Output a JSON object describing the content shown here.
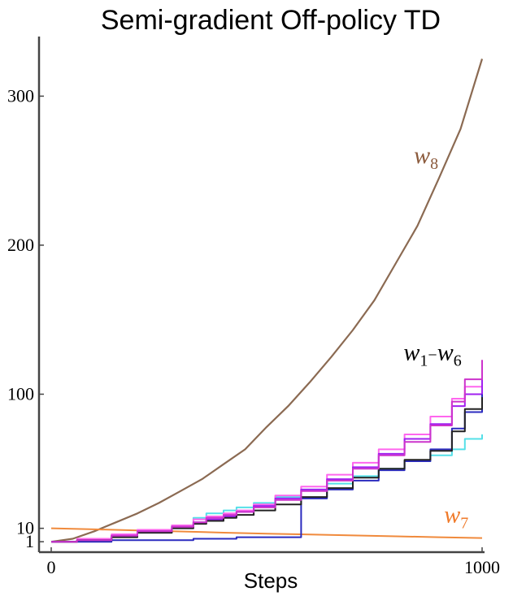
{
  "chart_data": {
    "type": "line",
    "title": "Semi-gradient Off-policy TD",
    "xlabel": "Steps",
    "ylabel": "",
    "xlim": [
      0,
      1000
    ],
    "ylim": [
      -6,
      340
    ],
    "xticks": [
      {
        "value": 0,
        "label": "0"
      },
      {
        "value": 1000,
        "label": "1000"
      }
    ],
    "yticks": [
      {
        "value": 1,
        "label": "1"
      },
      {
        "value": 10,
        "label": "10"
      },
      {
        "value": 100,
        "label": "100"
      },
      {
        "value": 200,
        "label": "200"
      },
      {
        "value": 300,
        "label": "300"
      }
    ],
    "series": [
      {
        "key": "w8",
        "color": "#8b6a52",
        "stroke": 2.2,
        "x": [
          0,
          50,
          100,
          150,
          200,
          250,
          300,
          350,
          400,
          450,
          500,
          550,
          600,
          650,
          700,
          750,
          800,
          850,
          900,
          950,
          1000
        ],
        "y": [
          1,
          3,
          8,
          14,
          20,
          27,
          35,
          43,
          53,
          63,
          78,
          92,
          108,
          125,
          143,
          163,
          188,
          213,
          245,
          278,
          325
        ]
      },
      {
        "key": "w7",
        "color": "#f08a3c",
        "stroke": 2,
        "x": [
          0,
          100,
          200,
          300,
          400,
          500,
          600,
          700,
          800,
          900,
          1000
        ],
        "y": [
          10,
          9.3,
          8.6,
          7.9,
          7.1,
          6.4,
          5.8,
          5.2,
          4.6,
          4.0,
          3.5
        ]
      },
      {
        "key": "w1",
        "color": "#55e0e8",
        "stroke": 2,
        "x": [
          0,
          60,
          140,
          200,
          280,
          330,
          360,
          400,
          430,
          470,
          520,
          580,
          640,
          700,
          760,
          820,
          880,
          930,
          960,
          1000
        ],
        "y": [
          1,
          2,
          5,
          9,
          12,
          17,
          20,
          22,
          24,
          27,
          31,
          36,
          40,
          45,
          50,
          55,
          59,
          63,
          70,
          73
        ]
      },
      {
        "key": "w2",
        "color": "#ff66ee",
        "stroke": 2,
        "x": [
          0,
          60,
          140,
          200,
          280,
          330,
          360,
          400,
          430,
          470,
          520,
          580,
          640,
          700,
          760,
          820,
          880,
          930,
          960,
          1000
        ],
        "y": [
          1,
          3,
          6,
          9,
          12,
          16,
          18,
          20,
          22,
          26,
          32,
          38,
          46,
          54,
          63,
          73,
          85,
          97,
          105,
          118
        ]
      },
      {
        "key": "w3",
        "color": "#a020f0",
        "stroke": 2,
        "x": [
          0,
          60,
          140,
          200,
          280,
          330,
          360,
          400,
          430,
          470,
          520,
          580,
          640,
          700,
          760,
          820,
          880,
          930,
          960,
          1000
        ],
        "y": [
          1,
          2,
          5,
          8,
          11,
          14,
          16,
          18,
          21,
          25,
          30,
          36,
          43,
          51,
          60,
          70,
          80,
          92,
          100,
          113
        ]
      },
      {
        "key": "w4",
        "color": "#2b2bbf",
        "stroke": 2,
        "x": [
          0,
          60,
          140,
          200,
          280,
          330,
          360,
          400,
          430,
          470,
          520,
          580,
          640,
          700,
          760,
          820,
          880,
          930,
          960,
          1000
        ],
        "y": [
          1,
          1,
          2,
          2,
          2,
          3,
          3,
          3,
          4,
          4,
          4,
          30,
          36,
          42,
          49,
          55,
          63,
          77,
          88,
          100
        ]
      },
      {
        "key": "w5",
        "color": "#222222",
        "stroke": 2,
        "x": [
          0,
          60,
          140,
          200,
          280,
          330,
          360,
          400,
          430,
          470,
          520,
          580,
          640,
          700,
          760,
          820,
          880,
          930,
          960,
          1000
        ],
        "y": [
          1,
          2,
          4,
          7,
          10,
          13,
          15,
          17,
          19,
          22,
          26,
          31,
          37,
          44,
          50,
          56,
          62,
          75,
          90,
          98
        ]
      },
      {
        "key": "w6",
        "color": "#cc33cc",
        "stroke": 2,
        "x": [
          0,
          60,
          140,
          200,
          280,
          330,
          360,
          400,
          430,
          470,
          520,
          580,
          640,
          700,
          760,
          820,
          880,
          930,
          960,
          1000
        ],
        "y": [
          1,
          2,
          5,
          8,
          11,
          14,
          17,
          19,
          21,
          24,
          29,
          35,
          42,
          50,
          59,
          68,
          79,
          95,
          110,
          123
        ]
      }
    ],
    "annotations": [
      {
        "key": "w8",
        "main": "w",
        "sub": "8",
        "color": "#8b5a3c",
        "x": 870,
        "y": 255
      },
      {
        "key": "w1w6",
        "main": "w",
        "sub": "1",
        "dash": "−",
        "main2": "w",
        "sub2": "6",
        "color": "#000000",
        "x": 885,
        "y": 123
      },
      {
        "key": "w7",
        "main": "w",
        "sub": "7",
        "color": "#f07a2a",
        "x": 940,
        "y": 14
      }
    ]
  }
}
